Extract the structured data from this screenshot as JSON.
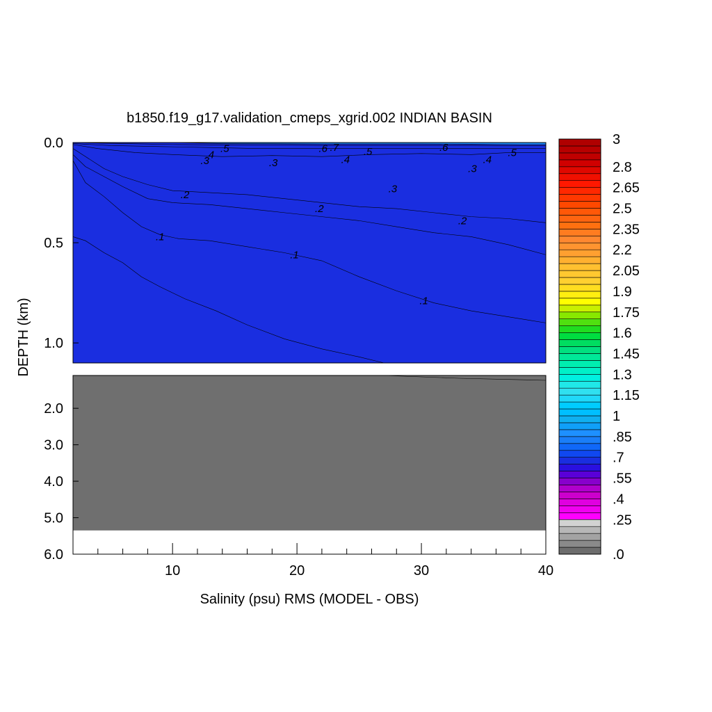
{
  "chart_data": {
    "type": "contour",
    "title": "b1850.f19_g17.validation_cmeps_xgrid.002 INDIAN BASIN",
    "xlabel": "Salinity (psu) RMS (MODEL - OBS)",
    "ylabel": "DEPTH (km)",
    "xlim": [
      2,
      40
    ],
    "ylim_upper": [
      0.0,
      1.1
    ],
    "ylim_lower": [
      1.1,
      6.0
    ],
    "x_ticks": [
      "10",
      "20",
      "30",
      "40"
    ],
    "y_ticks_upper": [
      "0.0",
      "0.5",
      "1.0"
    ],
    "y_ticks_lower": [
      "2.0",
      "3.0",
      "4.0",
      "5.0",
      "6.0"
    ],
    "contour_levels": [
      0.0,
      0.05,
      0.1,
      0.15,
      0.2,
      0.25,
      0.3,
      0.35,
      0.4,
      0.45,
      0.5,
      0.55,
      0.6,
      0.65,
      0.7,
      0.75,
      0.8,
      0.85,
      0.9,
      0.95,
      1.0,
      1.05,
      1.1,
      1.15,
      1.2,
      1.25,
      1.3,
      1.35,
      1.4,
      1.45,
      1.5,
      1.55,
      1.6,
      1.65,
      1.7,
      1.75,
      1.8,
      1.85,
      1.9,
      1.95,
      2.0,
      2.05,
      2.1,
      2.15,
      2.2,
      2.25,
      2.3,
      2.35,
      2.4,
      2.45,
      2.5,
      2.55,
      2.6,
      2.65,
      2.7,
      2.75,
      2.8,
      2.85,
      2.9,
      2.95,
      3.0
    ],
    "colorbar_labels": [
      {
        "value": 3.0,
        "text": "3"
      },
      {
        "value": 2.8,
        "text": "2.8"
      },
      {
        "value": 2.65,
        "text": "2.65"
      },
      {
        "value": 2.5,
        "text": "2.5"
      },
      {
        "value": 2.35,
        "text": "2.35"
      },
      {
        "value": 2.2,
        "text": "2.2"
      },
      {
        "value": 2.05,
        "text": "2.05"
      },
      {
        "value": 1.9,
        "text": "1.9"
      },
      {
        "value": 1.75,
        "text": "1.75"
      },
      {
        "value": 1.6,
        "text": "1.6"
      },
      {
        "value": 1.45,
        "text": "1.45"
      },
      {
        "value": 1.3,
        "text": "1.3"
      },
      {
        "value": 1.15,
        "text": "1.15"
      },
      {
        "value": 1.0,
        "text": "1"
      },
      {
        "value": 0.85,
        "text": ".85"
      },
      {
        "value": 0.7,
        "text": ".7"
      },
      {
        "value": 0.55,
        "text": ".55"
      },
      {
        "value": 0.4,
        "text": ".4"
      },
      {
        "value": 0.25,
        "text": ".25"
      },
      {
        "value": 0.0,
        "text": ".0"
      }
    ],
    "contour_labels": [
      {
        "text": ".5",
        "x": 14.2,
        "y": 0.03
      },
      {
        "text": ".6",
        "x": 22.1,
        "y": 0.03
      },
      {
        "text": ".7",
        "x": 23.0,
        "y": 0.025
      },
      {
        "text": ".5",
        "x": 25.7,
        "y": 0.045
      },
      {
        "text": ".6",
        "x": 31.8,
        "y": 0.025
      },
      {
        "text": ".5",
        "x": 37.3,
        "y": 0.05
      },
      {
        "text": ".4",
        "x": 13.0,
        "y": 0.06
      },
      {
        "text": ".3",
        "x": 12.6,
        "y": 0.09
      },
      {
        "text": ".3",
        "x": 18.1,
        "y": 0.1
      },
      {
        "text": ".4",
        "x": 23.9,
        "y": 0.085
      },
      {
        "text": ".4",
        "x": 35.3,
        "y": 0.085
      },
      {
        "text": ".3",
        "x": 34.1,
        "y": 0.13
      },
      {
        "text": ".3",
        "x": 27.7,
        "y": 0.23
      },
      {
        "text": ".2",
        "x": 11.0,
        "y": 0.26
      },
      {
        "text": ".2",
        "x": 21.8,
        "y": 0.33
      },
      {
        "text": ".2",
        "x": 33.3,
        "y": 0.39
      },
      {
        "text": ".1",
        "x": 9.0,
        "y": 0.47
      },
      {
        "text": ".1",
        "x": 19.8,
        "y": 0.56
      },
      {
        "text": ".1",
        "x": 30.2,
        "y": 0.79
      }
    ],
    "contours_upper": [
      {
        "level": 0.05,
        "color": "#6d6d6d",
        "points": [
          [
            2.0,
            0.47
          ],
          [
            3.0,
            0.49
          ],
          [
            4.5,
            0.55
          ],
          [
            6.0,
            0.6
          ],
          [
            7.5,
            0.67
          ],
          [
            9.0,
            0.72
          ],
          [
            11.0,
            0.78
          ],
          [
            13.5,
            0.84
          ],
          [
            16.0,
            0.91
          ],
          [
            19.0,
            0.98
          ],
          [
            22.0,
            1.03
          ],
          [
            25.0,
            1.07
          ],
          [
            27.0,
            1.1
          ]
        ]
      },
      {
        "level": 0.1,
        "color": "#8a8a8a",
        "points": [
          [
            2.0,
            0.09
          ],
          [
            3.0,
            0.2
          ],
          [
            4.5,
            0.27
          ],
          [
            6.0,
            0.35
          ],
          [
            7.5,
            0.42
          ],
          [
            9.0,
            0.46
          ],
          [
            10.5,
            0.48
          ],
          [
            13.0,
            0.49
          ],
          [
            16.0,
            0.52
          ],
          [
            19.0,
            0.55
          ],
          [
            22.0,
            0.59
          ],
          [
            25.0,
            0.67
          ],
          [
            28.0,
            0.74
          ],
          [
            31.0,
            0.8
          ],
          [
            34.0,
            0.84
          ],
          [
            37.0,
            0.87
          ],
          [
            40.0,
            0.9
          ]
        ]
      },
      {
        "level": 0.15,
        "color": "#a3a3a3",
        "points": [
          [
            2.0,
            0.06
          ],
          [
            3.0,
            0.12
          ],
          [
            4.5,
            0.17
          ],
          [
            6.0,
            0.22
          ],
          [
            8.0,
            0.28
          ],
          [
            10.0,
            0.3
          ],
          [
            13.0,
            0.31
          ],
          [
            16.0,
            0.33
          ],
          [
            19.0,
            0.35
          ],
          [
            22.0,
            0.37
          ],
          [
            25.0,
            0.39
          ],
          [
            28.0,
            0.42
          ],
          [
            31.0,
            0.45
          ],
          [
            34.0,
            0.47
          ],
          [
            37.0,
            0.51
          ],
          [
            40.0,
            0.56
          ]
        ]
      },
      {
        "level": 0.2,
        "color": "#c8c8c8",
        "points": [
          [
            2.0,
            0.03
          ],
          [
            3.0,
            0.07
          ],
          [
            4.5,
            0.13
          ],
          [
            6.0,
            0.17
          ],
          [
            8.0,
            0.21
          ],
          [
            10.0,
            0.24
          ],
          [
            13.0,
            0.25
          ],
          [
            16.0,
            0.26
          ],
          [
            19.0,
            0.28
          ],
          [
            22.0,
            0.3
          ],
          [
            25.0,
            0.32
          ],
          [
            28.0,
            0.33
          ],
          [
            31.0,
            0.35
          ],
          [
            34.0,
            0.37
          ],
          [
            37.0,
            0.38
          ],
          [
            40.0,
            0.4
          ]
        ]
      },
      {
        "level": 0.35,
        "color": "#ff00ff",
        "points": [
          [
            2.0,
            0.01
          ],
          [
            4.0,
            0.03
          ],
          [
            7.0,
            0.05
          ],
          [
            10.0,
            0.06
          ],
          [
            14.0,
            0.07
          ],
          [
            18.0,
            0.065
          ],
          [
            22.0,
            0.07
          ],
          [
            26.0,
            0.06
          ],
          [
            30.0,
            0.055
          ],
          [
            34.0,
            0.06
          ],
          [
            37.0,
            0.05
          ],
          [
            40.0,
            0.05
          ]
        ]
      },
      {
        "level": 0.45,
        "color": "#cc00cc",
        "points": [
          [
            2.0,
            0.005
          ],
          [
            5.0,
            0.015
          ],
          [
            9.0,
            0.02
          ],
          [
            13.0,
            0.025
          ],
          [
            17.0,
            0.03
          ],
          [
            21.0,
            0.03
          ],
          [
            25.0,
            0.03
          ],
          [
            29.0,
            0.03
          ],
          [
            33.0,
            0.03
          ],
          [
            37.0,
            0.03
          ],
          [
            40.0,
            0.03
          ]
        ]
      },
      {
        "level": 0.55,
        "color": "#8800cc",
        "points": [
          [
            2.0,
            0.0
          ],
          [
            6.0,
            0.005
          ],
          [
            10.0,
            0.01
          ],
          [
            14.0,
            0.012
          ],
          [
            18.0,
            0.012
          ],
          [
            22.0,
            0.014
          ],
          [
            26.0,
            0.014
          ],
          [
            30.0,
            0.014
          ],
          [
            34.0,
            0.014
          ],
          [
            38.0,
            0.016
          ],
          [
            40.0,
            0.016
          ]
        ]
      },
      {
        "level": 0.65,
        "color": "#1a2ee0",
        "points": [
          [
            2.0,
            0.0
          ],
          [
            10.0,
            0.0
          ],
          [
            14.0,
            0.005
          ],
          [
            18.0,
            0.006
          ],
          [
            22.0,
            0.007
          ],
          [
            26.0,
            0.007
          ],
          [
            30.0,
            0.007
          ],
          [
            34.0,
            0.008
          ],
          [
            38.0,
            0.01
          ],
          [
            40.0,
            0.01
          ]
        ]
      }
    ],
    "contours_lower": [
      {
        "level": 0.05,
        "color": "#6d6d6d",
        "points": [
          [
            2.0,
            1.1
          ],
          [
            40.0,
            1.1
          ]
        ]
      },
      {
        "level": 0.1,
        "color": "#8a8a8a",
        "points": [
          [
            2.0,
            5.35
          ],
          [
            40.0,
            5.35
          ]
        ]
      }
    ],
    "colors": {
      "grey_0": "#6d6d6d",
      "grey_05": "#8a8a8a",
      "grey_10": "#a3a3a3",
      "grey_15": "#b7b7b7",
      "grey_20": "#d2d2d2",
      "magenta": "#ff00ff",
      "dark_magenta": "#cc00cc",
      "violet": "#8800cc",
      "blue": "#1a2ee0",
      "sky": "#1e90ff",
      "deep_sky": "#00bfff"
    }
  }
}
